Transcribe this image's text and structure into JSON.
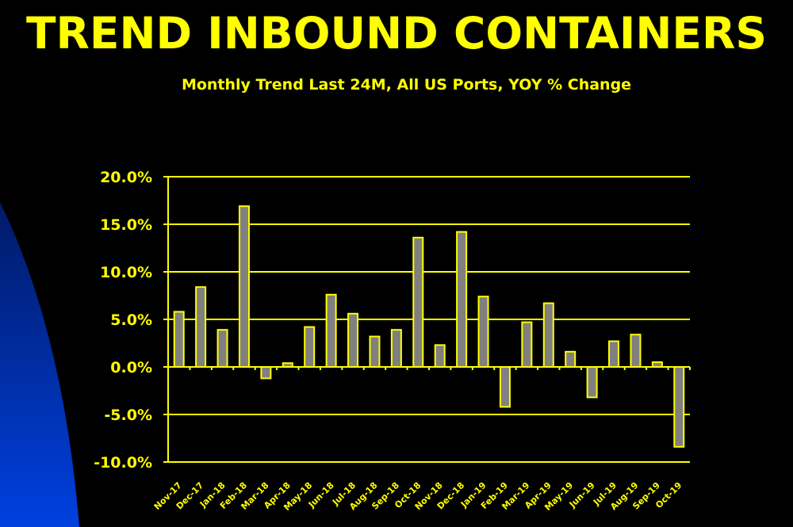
{
  "colors": {
    "background": "#000000",
    "text": "#ffff00",
    "bar_fill": "#808080",
    "bar_stroke": "#ffff00",
    "grid": "#ffff00",
    "decoration": "#0033cc"
  },
  "chart_data": {
    "type": "bar",
    "title": "TREND INBOUND CONTAINERS",
    "subtitle": "Monthly Trend Last 24M, All US Ports, YOY % Change",
    "xlabel": "",
    "ylabel": "",
    "ylim": [
      -10,
      20
    ],
    "yticks": [
      20,
      15,
      10,
      5,
      0,
      -5,
      -10
    ],
    "ytick_labels": [
      "20.0%",
      "15.0%",
      "10.0%",
      "5.0%",
      "0.0%",
      "-5.0%",
      "-10.0%"
    ],
    "grid": true,
    "legend": "none",
    "categories": [
      "Nov-17",
      "Dec-17",
      "Jan-18",
      "Feb-18",
      "Mar-18",
      "Apr-18",
      "May-18",
      "Jun-18",
      "Jul-18",
      "Aug-18",
      "Sep-18",
      "Oct-18",
      "Nov-18",
      "Dec-18",
      "Jan-19",
      "Feb-19",
      "Mar-19",
      "Apr-19",
      "May-19",
      "Jun-19",
      "Jul-19",
      "Aug-19",
      "Sep-19",
      "Oct-19"
    ],
    "values": [
      5.8,
      8.4,
      3.9,
      16.9,
      -1.2,
      0.4,
      4.2,
      7.6,
      5.6,
      3.2,
      3.9,
      13.6,
      2.3,
      14.2,
      7.4,
      -4.2,
      4.7,
      6.7,
      1.6,
      -3.2,
      2.7,
      3.4,
      0.5,
      -8.4
    ]
  }
}
